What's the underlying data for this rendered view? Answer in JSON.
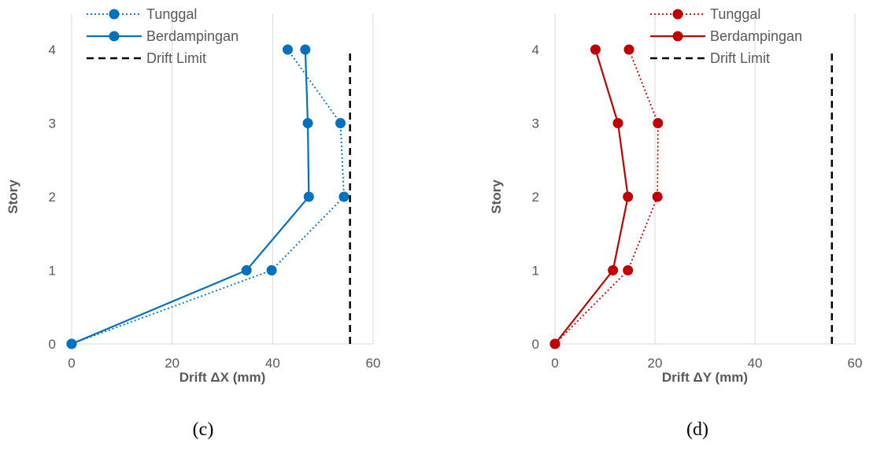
{
  "chart_data": [
    {
      "type": "line",
      "orientation": "vertical-profile",
      "caption": "(c)",
      "xlabel": "Drift ΔX (mm)",
      "ylabel": "Story",
      "xlim": [
        0,
        60
      ],
      "ylim": [
        0,
        4
      ],
      "x_ticks": [
        0,
        20,
        40,
        60
      ],
      "y_ticks": [
        0,
        1,
        2,
        3,
        4
      ],
      "grid": "vertical",
      "legend_position": "top-left",
      "color": "#0070C0",
      "series": [
        {
          "name": "Tunggal",
          "style": "dotted",
          "marker": "circle",
          "points": [
            {
              "x": 0,
              "y": 0
            },
            {
              "x": 39.8,
              "y": 1
            },
            {
              "x": 54.2,
              "y": 2
            },
            {
              "x": 53.5,
              "y": 3
            },
            {
              "x": 43.0,
              "y": 4
            }
          ]
        },
        {
          "name": "Berdampingan",
          "style": "solid",
          "marker": "circle",
          "points": [
            {
              "x": 0,
              "y": 0
            },
            {
              "x": 34.8,
              "y": 1
            },
            {
              "x": 47.2,
              "y": 2
            },
            {
              "x": 47.0,
              "y": 3
            },
            {
              "x": 46.5,
              "y": 4
            }
          ]
        },
        {
          "name": "Drift Limit",
          "style": "dashed",
          "marker": "none",
          "color": "#000000",
          "points": [
            {
              "x": 55.4,
              "y": 0
            },
            {
              "x": 55.4,
              "y": 4
            }
          ]
        }
      ]
    },
    {
      "type": "line",
      "orientation": "vertical-profile",
      "caption": "(d)",
      "xlabel": "Drift ΔY (mm)",
      "ylabel": "Story",
      "xlim": [
        0,
        60
      ],
      "ylim": [
        0,
        4
      ],
      "x_ticks": [
        0,
        20,
        40,
        60
      ],
      "y_ticks": [
        0,
        1,
        2,
        3,
        4
      ],
      "grid": "vertical",
      "legend_position": "top-right",
      "color": "#C00000",
      "series": [
        {
          "name": "Tunggal",
          "style": "dotted",
          "marker": "circle",
          "points": [
            {
              "x": 0,
              "y": 0
            },
            {
              "x": 14.6,
              "y": 1
            },
            {
              "x": 20.5,
              "y": 2
            },
            {
              "x": 20.6,
              "y": 3
            },
            {
              "x": 14.8,
              "y": 4
            }
          ]
        },
        {
          "name": "Berdampingan",
          "style": "solid",
          "marker": "circle",
          "points": [
            {
              "x": 0,
              "y": 0
            },
            {
              "x": 11.6,
              "y": 1
            },
            {
              "x": 14.6,
              "y": 2
            },
            {
              "x": 12.6,
              "y": 3
            },
            {
              "x": 8.1,
              "y": 4
            }
          ]
        },
        {
          "name": "Drift Limit",
          "style": "dashed",
          "marker": "none",
          "color": "#000000",
          "points": [
            {
              "x": 55.4,
              "y": 0
            },
            {
              "x": 55.4,
              "y": 4
            }
          ]
        }
      ]
    }
  ]
}
